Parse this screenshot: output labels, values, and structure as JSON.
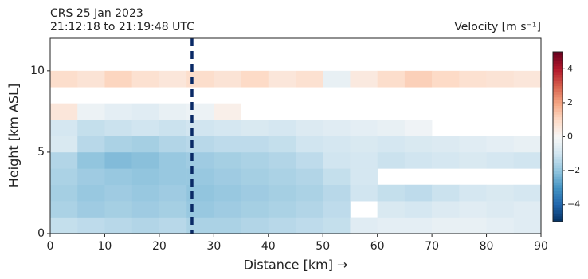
{
  "chart_data": {
    "type": "heatmap",
    "title": "CRS 25 Jan 2023",
    "subtitle": "21:12:18 to 21:19:48 UTC",
    "colorbar_label": "Velocity [m s⁻¹]",
    "x_label": "Distance [km] →",
    "y_label": "Height [km ASL]",
    "xlim": [
      0,
      90
    ],
    "ylim": [
      0,
      12
    ],
    "xticks": [
      0,
      10,
      20,
      30,
      40,
      50,
      60,
      70,
      80,
      90
    ],
    "yticks": [
      0,
      5,
      10
    ],
    "xbins": [
      0,
      5,
      10,
      15,
      20,
      25,
      30,
      35,
      40,
      45,
      50,
      55,
      60,
      65,
      70,
      75,
      80,
      85,
      90
    ],
    "ybins": [
      0,
      1,
      2,
      3,
      4,
      5,
      6,
      7,
      8,
      9,
      10,
      11,
      12
    ],
    "z": [
      [
        -1.2,
        -1.3,
        -1.4,
        -1.5,
        -1.4,
        -1.6,
        -1.6,
        -1.5,
        -1.4,
        -1.3,
        -1.2,
        -0.6,
        -0.5,
        -0.5,
        -0.4,
        -0.4,
        -0.5,
        -0.6
      ],
      [
        -1.6,
        -1.8,
        -1.7,
        -1.8,
        -1.7,
        -1.9,
        -1.8,
        -1.7,
        -1.6,
        -1.5,
        -1.3,
        null,
        -0.8,
        -0.9,
        -0.7,
        -0.6,
        -0.7,
        -0.6
      ],
      [
        -1.7,
        -1.9,
        -1.8,
        -1.9,
        -1.8,
        -2.0,
        -1.9,
        -1.8,
        -1.7,
        -1.6,
        -1.4,
        -1.0,
        -1.2,
        -1.3,
        -1.1,
        -0.9,
        -0.8,
        -0.9
      ],
      [
        -1.6,
        -1.8,
        -1.9,
        -2.0,
        -1.9,
        -1.9,
        -1.8,
        -1.7,
        -1.6,
        -1.5,
        -1.2,
        -0.9,
        null,
        null,
        null,
        null,
        null,
        null
      ],
      [
        -1.5,
        -2.0,
        -2.2,
        -2.1,
        -1.9,
        -1.8,
        -1.7,
        -1.6,
        -1.5,
        -1.3,
        -1.0,
        -0.9,
        -1.1,
        -1.0,
        -0.9,
        -0.8,
        -0.9,
        -1.0
      ],
      [
        -0.8,
        -1.4,
        -1.6,
        -1.7,
        -1.5,
        -1.4,
        -1.3,
        -1.3,
        -1.2,
        -1.0,
        -0.9,
        -0.8,
        -0.9,
        -0.8,
        -0.7,
        -0.6,
        -0.5,
        -0.4
      ],
      [
        -0.9,
        -1.2,
        -1.1,
        -1.0,
        -1.1,
        -1.0,
        -0.9,
        -0.8,
        -0.9,
        -0.7,
        -0.6,
        -0.5,
        -0.4,
        -0.2,
        null,
        null,
        null,
        null
      ],
      [
        0.6,
        -0.3,
        -0.5,
        -0.6,
        -0.4,
        -0.3,
        0.3,
        null,
        null,
        null,
        null,
        null,
        null,
        null,
        null,
        null,
        null,
        null
      ],
      [
        null,
        null,
        null,
        null,
        null,
        null,
        null,
        null,
        null,
        null,
        null,
        null,
        null,
        null,
        null,
        null,
        null,
        null
      ],
      [
        0.9,
        0.7,
        1.1,
        0.8,
        0.6,
        0.9,
        0.7,
        1.0,
        0.6,
        0.8,
        -0.4,
        0.5,
        0.9,
        1.2,
        1.0,
        0.8,
        0.7,
        0.6
      ],
      [
        null,
        null,
        null,
        null,
        null,
        null,
        null,
        null,
        null,
        null,
        null,
        null,
        null,
        null,
        null,
        null,
        null,
        null
      ],
      [
        null,
        null,
        null,
        null,
        null,
        null,
        null,
        null,
        null,
        null,
        null,
        null,
        null,
        null,
        null,
        null,
        null,
        null
      ]
    ],
    "colormap": "RdBu_r",
    "clim": [
      -5,
      5
    ],
    "cticks": [
      {
        "value": -4,
        "label": "−4"
      },
      {
        "value": -2,
        "label": "−2"
      },
      0,
      2,
      4
    ],
    "vline": {
      "x": 26,
      "color": "#0a2a66"
    }
  }
}
